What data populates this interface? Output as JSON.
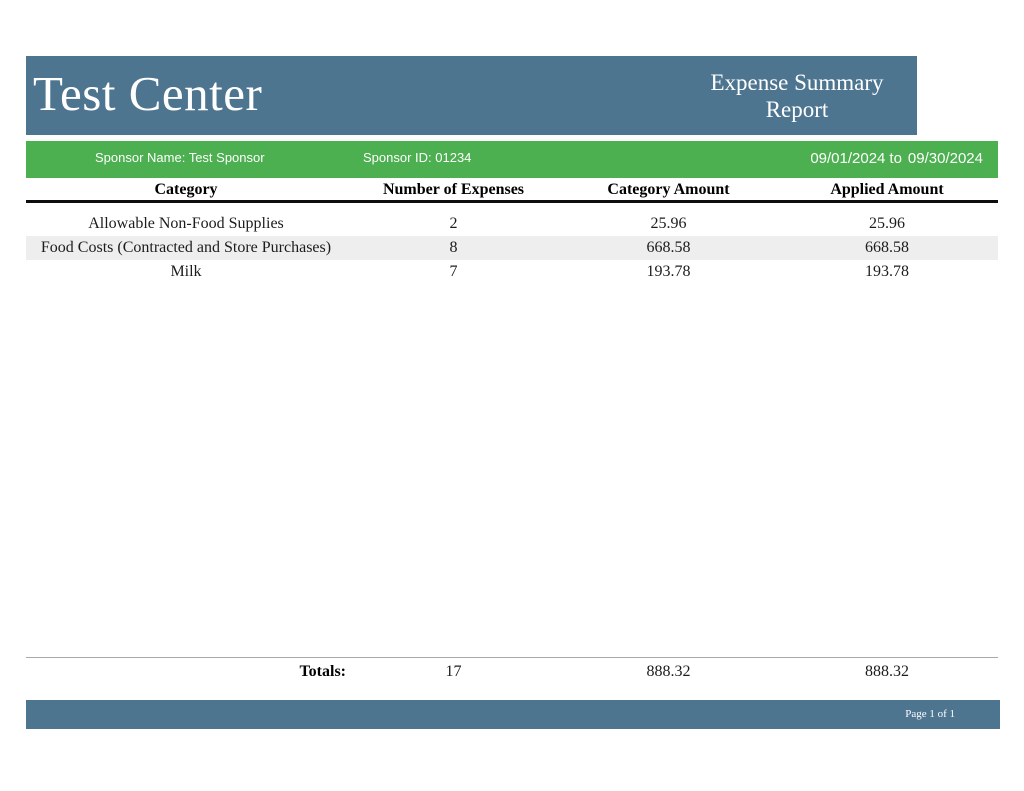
{
  "header": {
    "center_name": "Test Center",
    "report_title_line1": "Expense Summary",
    "report_title_line2": "Report"
  },
  "info_bar": {
    "sponsor_name": "Sponsor Name: Test Sponsor",
    "sponsor_id": "Sponsor ID: 01234",
    "date_start": "09/01/2024",
    "date_separator": "to",
    "date_end": "09/30/2024"
  },
  "table": {
    "columns": [
      "Category",
      "Number of Expenses",
      "Category Amount",
      "Applied Amount"
    ],
    "rows": [
      {
        "category": "Allowable Non-Food Supplies",
        "num_expenses": "2",
        "category_amount": "25.96",
        "applied_amount": "25.96"
      },
      {
        "category": "Food Costs (Contracted and Store Purchases)",
        "num_expenses": "8",
        "category_amount": "668.58",
        "applied_amount": "668.58"
      },
      {
        "category": "Milk",
        "num_expenses": "7",
        "category_amount": "193.78",
        "applied_amount": "193.78"
      }
    ],
    "totals": {
      "label": "Totals:",
      "num_expenses": "17",
      "category_amount": "888.32",
      "applied_amount": "888.32"
    }
  },
  "footer": {
    "page_label": "Page 1 of 1"
  },
  "colors": {
    "header_bar": "#4e7590",
    "info_bar": "#4caf50",
    "row_stripe": "#eeeeee"
  }
}
